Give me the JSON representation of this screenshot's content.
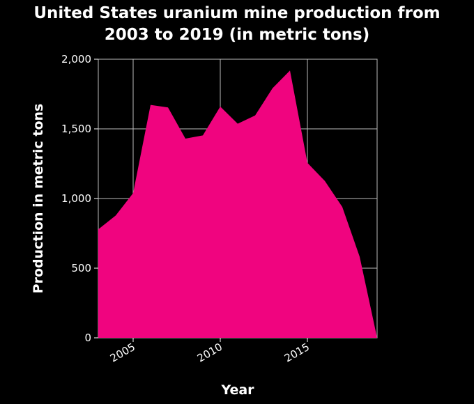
{
  "chart_data": {
    "type": "area",
    "title_lines": [
      "United States uranium mine production from",
      "2003 to 2019 (in metric tons)"
    ],
    "xlabel": "Year",
    "ylabel": "Production in metric tons",
    "xlim": [
      2003,
      2019
    ],
    "ylim": [
      0,
      2000
    ],
    "x_ticks": [
      2005,
      2010,
      2015
    ],
    "x_tick_labels": [
      "2005",
      "2010",
      "2015"
    ],
    "y_ticks": [
      0,
      500,
      1000,
      1500,
      2000
    ],
    "y_tick_labels": [
      "0",
      "500",
      "1,000",
      "1,500",
      "2,000"
    ],
    "grid": true,
    "colors": {
      "area": "#f0047f",
      "background": "#000000",
      "grid": "#bdbdbd"
    },
    "series": [
      {
        "x": [
          2003,
          2004,
          2005,
          2006,
          2007,
          2008,
          2009,
          2010,
          2011,
          2012,
          2013,
          2014,
          2015,
          2016,
          2017,
          2018,
          2019
        ],
        "values": [
          779,
          878,
          1039,
          1672,
          1654,
          1430,
          1453,
          1660,
          1537,
          1596,
          1792,
          1919,
          1256,
          1126,
          940,
          582,
          0
        ]
      }
    ]
  }
}
